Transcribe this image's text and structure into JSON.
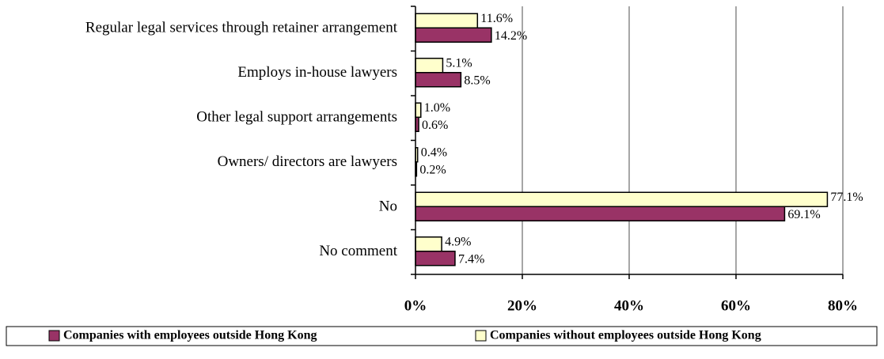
{
  "chart_data": {
    "type": "bar",
    "orientation": "horizontal",
    "categories": [
      "Regular legal services through retainer arrangement",
      "Employs in-house lawyers",
      "Other legal support arrangements",
      "Owners/ directors are lawyers",
      "No",
      "No comment"
    ],
    "series": [
      {
        "name": "Companies with employees outside Hong Kong",
        "color": "#993366",
        "values": [
          14.2,
          8.5,
          0.6,
          0.2,
          69.1,
          7.4
        ],
        "value_labels": [
          "14.2%",
          "8.5%",
          "0.6%",
          "0.2%",
          "69.1%",
          "7.4%"
        ]
      },
      {
        "name": "Companies without employees outside Hong Kong",
        "color": "#ffffcc",
        "values": [
          11.6,
          5.1,
          1.0,
          0.4,
          77.1,
          4.9
        ],
        "value_labels": [
          "11.6%",
          "5.1%",
          "1.0%",
          "0.4%",
          "77.1%",
          "4.9%"
        ]
      }
    ],
    "xlim": [
      0,
      80
    ],
    "xticks": [
      {
        "value": 0,
        "label": "0%"
      },
      {
        "value": 20,
        "label": "20%"
      },
      {
        "value": 40,
        "label": "40%"
      },
      {
        "value": 60,
        "label": "60%"
      },
      {
        "value": 80,
        "label": "80%"
      }
    ],
    "grid": true,
    "legend": "bottom"
  }
}
